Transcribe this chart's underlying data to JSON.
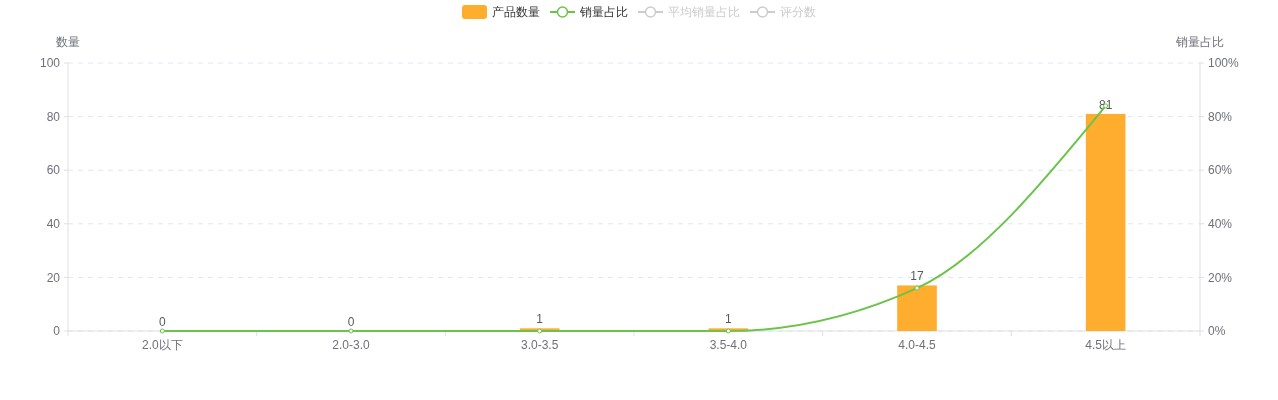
{
  "chart_data": {
    "type": "bar",
    "categories": [
      "2.0以下",
      "2.0-3.0",
      "3.0-3.5",
      "3.5-4.0",
      "4.0-4.5",
      "4.5以上"
    ],
    "series": [
      {
        "name": "产品数量",
        "color": "#ffad2e",
        "values": [
          0,
          0,
          1,
          1,
          17,
          81
        ],
        "value_labels": [
          "0",
          "0",
          "1",
          "1",
          "17",
          "81"
        ]
      },
      {
        "name": "销量占比",
        "type": "line",
        "axis": "y2",
        "color": "#6bc34a",
        "values": [
          0,
          0,
          0,
          0,
          16,
          84
        ]
      },
      {
        "name": "平均销量占比",
        "type": "line",
        "color": "#cccccc",
        "values": [
          null,
          null,
          null,
          null,
          null,
          null
        ]
      },
      {
        "name": "评分数",
        "type": "line",
        "color": "#cccccc",
        "values": [
          null,
          null,
          null,
          null,
          null,
          null
        ]
      }
    ],
    "ylabel": "数量",
    "y2label": "销量占比",
    "ylim": [
      0,
      100
    ],
    "yticks": [
      0,
      20,
      40,
      60,
      80,
      100
    ],
    "y2lim": [
      0,
      100
    ],
    "y2ticks": [
      {
        "value": 0,
        "label": "0%"
      },
      {
        "value": 20,
        "label": "20%"
      },
      {
        "value": 40,
        "label": "40%"
      },
      {
        "value": 60,
        "label": "60%"
      },
      {
        "value": 80,
        "label": "80%"
      },
      {
        "value": 100,
        "label": "100%"
      }
    ],
    "grid": "y",
    "legend": "top",
    "marker": "circle"
  }
}
